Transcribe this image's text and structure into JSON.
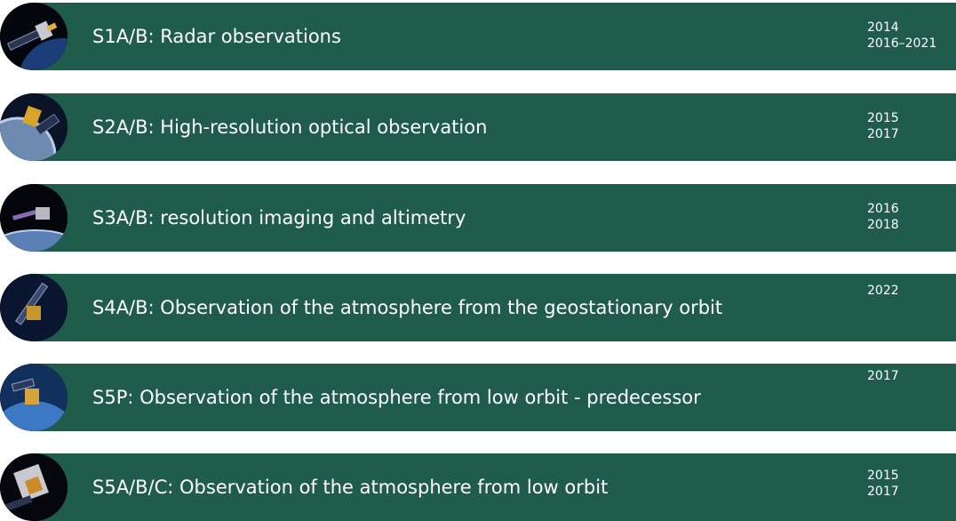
{
  "missions": [
    {
      "title": "S1A/B: Radar observations",
      "years": [
        "2014",
        "2016–2021"
      ],
      "icon": "sentinel-1-satellite-icon"
    },
    {
      "title": "S2A/B: High-resolution optical observation",
      "years": [
        "2015",
        "2017"
      ],
      "icon": "sentinel-2-satellite-icon"
    },
    {
      "title": "S3A/B: resolution imaging and  altimetry",
      "years": [
        "2016",
        "2018"
      ],
      "icon": "sentinel-3-satellite-icon"
    },
    {
      "title": "S4A/B: Observation of the atmosphere from the geostationary orbit",
      "years": [
        "2022"
      ],
      "icon": "sentinel-4-satellite-icon"
    },
    {
      "title": "S5P: Observation of the atmosphere from low orbit - predecessor",
      "years": [
        "2017"
      ],
      "icon": "sentinel-5p-satellite-icon"
    },
    {
      "title": "S5A/B/C: Observation of the atmosphere from low orbit",
      "years": [
        "2015",
        "2017"
      ],
      "icon": "sentinel-5-satellite-icon"
    }
  ],
  "colors": {
    "band": "#1f5c4b",
    "text": "#ffffff",
    "background": "#ffffff"
  }
}
